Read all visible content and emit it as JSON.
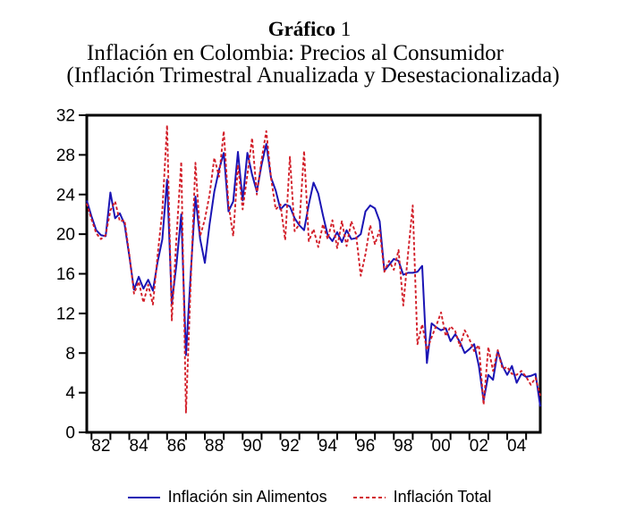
{
  "header": {
    "title": "Gráfico",
    "title_number": "1",
    "subtitle1": "Inflación en Colombia: Precios al Consumidor",
    "subtitle2": "(Inflación Trimestral Anualizada y Desestacionalizada)"
  },
  "legend": {
    "items": [
      {
        "label": "Inflación sin Alimentos",
        "color": "#1a14b4",
        "style": "solid"
      },
      {
        "label": "Inflación Total",
        "color": "#d21e28",
        "style": "dashed"
      }
    ]
  },
  "chart_data": {
    "type": "line",
    "title": "Gráfico 1",
    "subtitle": "Inflación en Colombia: Precios al Consumidor (Inflación Trimestral Anualizada y Desestacionalizada)",
    "xlabel": "",
    "ylabel": "",
    "x_start": 1981.75,
    "x_step": 0.25,
    "xlim": [
      1981.75,
      2005.75
    ],
    "ylim": [
      0,
      32
    ],
    "y_ticks": [
      0,
      4,
      8,
      12,
      16,
      20,
      24,
      28,
      32
    ],
    "x_labels": [
      {
        "year": 1982,
        "text": "82"
      },
      {
        "year": 1984,
        "text": "84"
      },
      {
        "year": 1986,
        "text": "86"
      },
      {
        "year": 1988,
        "text": "88"
      },
      {
        "year": 1990,
        "text": "90"
      },
      {
        "year": 1992,
        "text": "92"
      },
      {
        "year": 1994,
        "text": "94"
      },
      {
        "year": 1996,
        "text": "96"
      },
      {
        "year": 1998,
        "text": "98"
      },
      {
        "year": 2000,
        "text": "00"
      },
      {
        "year": 2002,
        "text": "02"
      },
      {
        "year": 2004,
        "text": "04"
      }
    ],
    "grid": false,
    "legend_position": "bottom",
    "series": [
      {
        "name": "Inflación sin Alimentos",
        "color": "#1a14b4",
        "dash": "none",
        "values": [
          23.4,
          21.8,
          20.4,
          19.9,
          19.8,
          24.2,
          21.6,
          22.1,
          21.0,
          17.8,
          14.4,
          15.7,
          14.5,
          15.4,
          14.3,
          17.2,
          19.5,
          25.5,
          13.0,
          17.0,
          22.0,
          7.8,
          16.0,
          23.8,
          19.5,
          17.1,
          21.0,
          24.3,
          26.5,
          28.2,
          22.3,
          23.3,
          28.3,
          23.4,
          28.2,
          26.0,
          24.3,
          27.0,
          29.1,
          25.7,
          24.4,
          22.5,
          23.0,
          22.8,
          21.6,
          20.9,
          20.4,
          23.0,
          25.2,
          24.1,
          21.9,
          19.9,
          19.3,
          20.2,
          19.2,
          20.4,
          19.5,
          19.6,
          20.0,
          22.3,
          22.9,
          22.6,
          21.3,
          16.3,
          16.9,
          17.5,
          17.3,
          15.9,
          16.1,
          16.1,
          16.2,
          16.8,
          7.0,
          11.0,
          10.6,
          10.3,
          10.5,
          9.2,
          9.9,
          9.1,
          8.0,
          8.4,
          8.9,
          6.7,
          3.2,
          5.8,
          5.3,
          8.2,
          6.7,
          5.8,
          6.7,
          5.0,
          5.9,
          5.6,
          5.7,
          5.9,
          2.6
        ]
      },
      {
        "name": "Inflación Total",
        "color": "#d21e28",
        "dash": "3.5 2.5",
        "values": [
          23.1,
          21.5,
          20.1,
          19.5,
          19.9,
          22.4,
          23.3,
          21.3,
          21.4,
          18.0,
          14.0,
          15.2,
          13.1,
          14.9,
          12.9,
          17.9,
          22.4,
          31.0,
          11.3,
          19.8,
          27.3,
          2.0,
          15.0,
          27.2,
          19.8,
          21.5,
          24.0,
          27.7,
          25.8,
          30.4,
          23.0,
          19.8,
          27.0,
          22.5,
          26.0,
          29.7,
          24.0,
          27.5,
          30.4,
          25.7,
          22.5,
          23.0,
          19.4,
          27.8,
          20.3,
          21.0,
          28.4,
          19.3,
          20.5,
          18.7,
          21.0,
          19.5,
          21.4,
          18.6,
          21.3,
          18.8,
          21.3,
          20.0,
          15.8,
          18.0,
          20.9,
          19.0,
          20.4,
          16.2,
          17.3,
          16.4,
          18.4,
          12.8,
          18.0,
          22.9,
          8.9,
          10.9,
          8.3,
          9.6,
          10.8,
          12.1,
          9.7,
          10.7,
          10.2,
          8.7,
          10.3,
          9.4,
          8.2,
          8.8,
          2.8,
          8.6,
          6.2,
          8.3,
          6.4,
          6.6,
          5.9,
          5.8,
          6.2,
          5.6,
          4.8,
          5.5,
          3.7
        ]
      }
    ]
  }
}
